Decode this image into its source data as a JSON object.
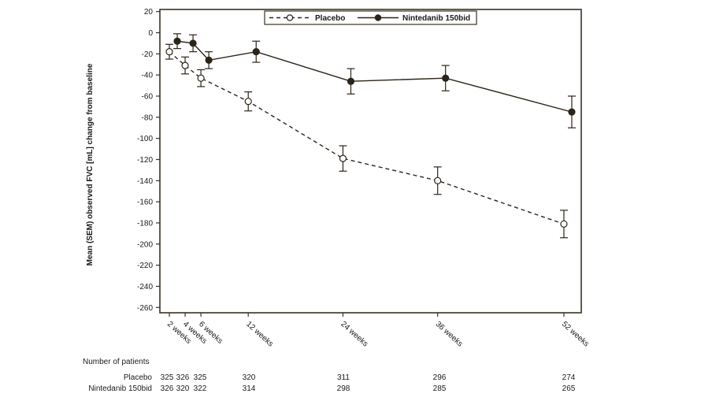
{
  "chart_data": {
    "type": "line",
    "title": "",
    "xlabel": "",
    "ylabel": "Mean (SEM) observed FVC [mL] change from baseline",
    "ylim": [
      -265,
      22
    ],
    "yticks": [
      20,
      0,
      -20,
      -40,
      -60,
      -80,
      -100,
      -120,
      -140,
      -160,
      -180,
      -200,
      -220,
      -240,
      -260
    ],
    "x": [
      2,
      4,
      6,
      12,
      24,
      36,
      52
    ],
    "xtick_labels": [
      "2 weeks",
      "4 weeks",
      "6 weeks",
      "12 weeks",
      "24 weeks",
      "36 weeks",
      "52 weeks"
    ],
    "legend_position": "top-center",
    "series": [
      {
        "name": "Placebo",
        "style": "dashed",
        "marker": "open-circle",
        "x": [
          2,
          4,
          6,
          12,
          24,
          36,
          52
        ],
        "values": [
          -18,
          -31,
          -43,
          -65,
          -119,
          -140,
          -181
        ],
        "sem": [
          7,
          8,
          8,
          9,
          12,
          13,
          13
        ]
      },
      {
        "name": "Nintedanib 150bid",
        "style": "solid",
        "marker": "filled-circle",
        "x": [
          3,
          5,
          7,
          13,
          25,
          37,
          53
        ],
        "values": [
          -8,
          -10,
          -26,
          -18,
          -46,
          -43,
          -75
        ],
        "sem": [
          7,
          8,
          8,
          10,
          12,
          12,
          15
        ]
      }
    ]
  },
  "patients_table": {
    "title": "Number of patients",
    "rows": [
      {
        "label": "Placebo",
        "counts": [
          "325",
          "326",
          "325",
          "320",
          "311",
          "296",
          "274"
        ]
      },
      {
        "label": "Nintedanib 150bid",
        "counts": [
          "326",
          "320",
          "322",
          "314",
          "298",
          "285",
          "265"
        ]
      }
    ]
  },
  "colors": {
    "line": "#2b2418",
    "frame": "#3a3222"
  }
}
